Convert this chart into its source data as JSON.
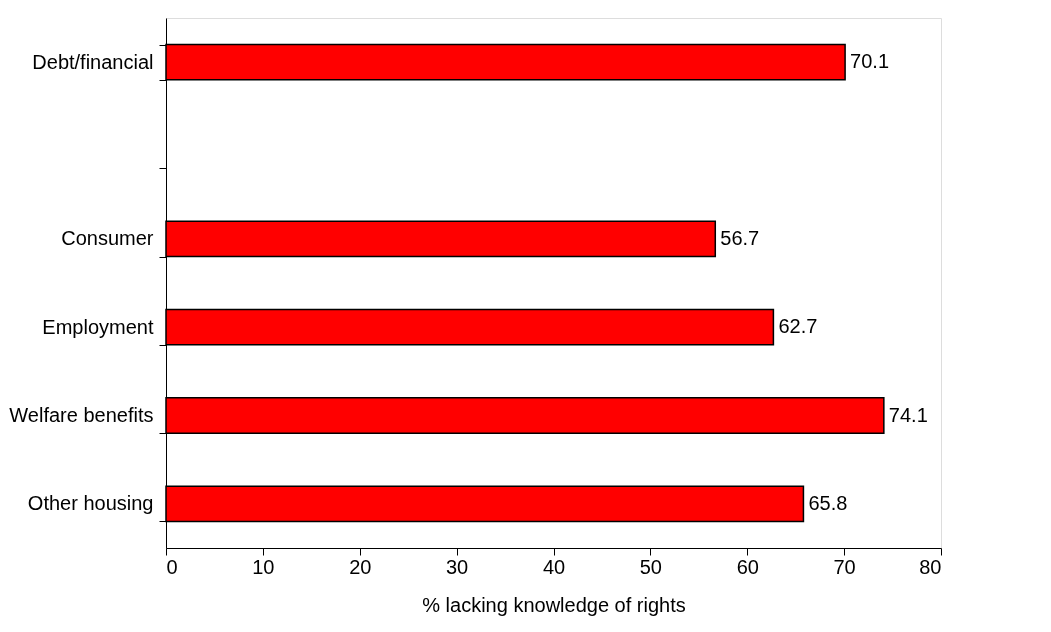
{
  "chart_data": {
    "type": "bar",
    "orientation": "horizontal",
    "xlabel": "% lacking knowledge of rights",
    "categories": [
      "Debt/financial",
      null,
      "Consumer",
      "Employment",
      "Welfare benefits",
      "Other housing"
    ],
    "values": [
      70.1,
      null,
      56.7,
      62.7,
      74.1,
      65.8
    ],
    "color": "#ff0000",
    "xlim": [
      0,
      80
    ],
    "xticks": [
      0,
      10,
      20,
      30,
      40,
      50,
      60,
      70,
      80
    ],
    "data_labels": true,
    "grid": false
  }
}
